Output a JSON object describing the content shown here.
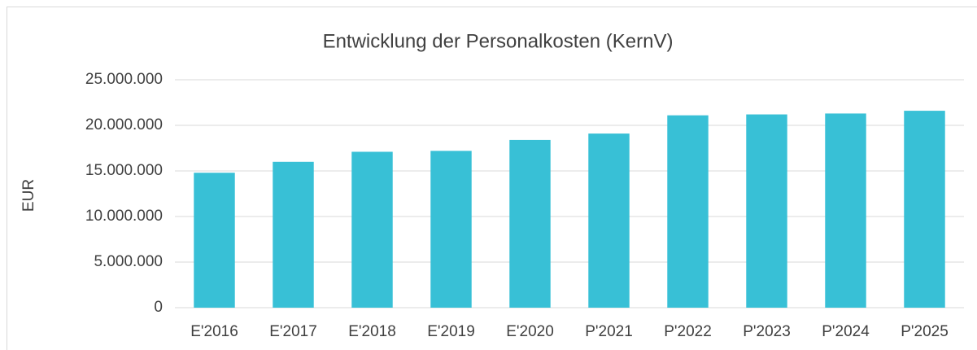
{
  "chart_data": {
    "type": "bar",
    "title": "Entwicklung der Personalkosten (KernV)",
    "y_label": "EUR",
    "categories": [
      "E'2016",
      "E'2017",
      "E'2018",
      "E'2019",
      "E'2020",
      "P'2021",
      "P'2022",
      "P'2023",
      "P'2024",
      "P'2025"
    ],
    "values": [
      14800000,
      16000000,
      17100000,
      17200000,
      18400000,
      19100000,
      21100000,
      21200000,
      21300000,
      21600000
    ],
    "color": "#38c0d6",
    "ylim": [
      0,
      25000000
    ],
    "yticks": [
      0,
      {
        "value": 5000000,
        "label": "5.000.000"
      },
      {
        "value": 10000000,
        "label": "10.000.000"
      },
      {
        "value": 15000000,
        "label": "15.000.000"
      },
      {
        "value": 20000000,
        "label": "20.000.000"
      },
      {
        "value": 25000000,
        "label": "25.000.000"
      }
    ],
    "grid": true
  }
}
